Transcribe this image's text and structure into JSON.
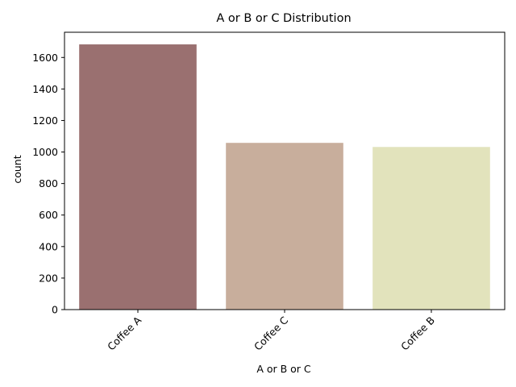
{
  "chart_data": {
    "type": "bar",
    "title": "A or B or C Distribution",
    "xlabel": "A or B or C",
    "ylabel": "count",
    "categories": [
      "Coffee A",
      "Coffee C",
      "Coffee B"
    ],
    "values": [
      1683,
      1058,
      1032
    ],
    "colors": [
      "#9a7070",
      "#c8ae9c",
      "#e2e3bc"
    ],
    "ylim": [
      0,
      1760
    ],
    "yticks": [
      0,
      200,
      400,
      600,
      800,
      1000,
      1200,
      1400,
      1600
    ],
    "grid": false,
    "xtick_rotation_deg": 45
  }
}
